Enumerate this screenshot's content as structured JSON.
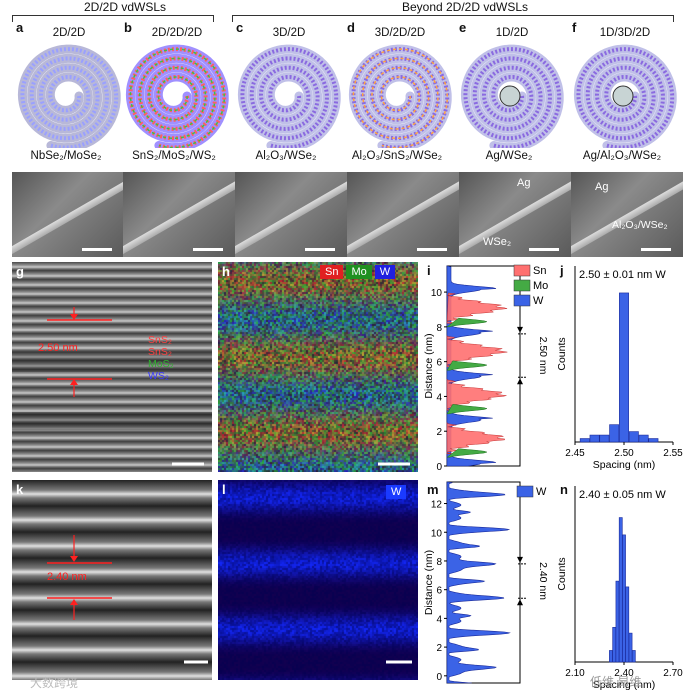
{
  "header": {
    "group1": "2D/2D vdWSLs",
    "group2": "Beyond 2D/2D vdWSLs"
  },
  "top_panels": [
    {
      "letter": "a",
      "title": "2D/2D",
      "material": "NbSe₂/MoSe₂"
    },
    {
      "letter": "b",
      "title": "2D/2D/2D",
      "material": "SnS₂/MoS₂/WS₂"
    },
    {
      "letter": "c",
      "title": "3D/2D",
      "material": "Al₂O₃/WSe₂"
    },
    {
      "letter": "d",
      "title": "3D/2D/2D",
      "material": "Al₂O₃/SnS₂/WSe₂"
    },
    {
      "letter": "e",
      "title": "1D/2D",
      "material": "Ag/WSe₂"
    },
    {
      "letter": "f",
      "title": "1D/3D/2D",
      "material": "Ag/Al₂O₃/WSe₂"
    }
  ],
  "sem_labels": {
    "e_top": "Ag",
    "e_bottom": "WSe₂",
    "f_top": "Ag",
    "f_bottom": "Al₂O₃/WSe₂"
  },
  "panel_g": {
    "letter": "g",
    "spacing": "2.50 nm",
    "layers": [
      "SnS₂",
      "SnS₂",
      "MoS₂",
      "WS₂"
    ],
    "layer_colors": [
      "#ff4040",
      "#ff4040",
      "#30b030",
      "#3a3aff"
    ]
  },
  "panel_h": {
    "letter": "h",
    "legend": [
      "Sn",
      "Mo",
      "W"
    ]
  },
  "panel_k": {
    "letter": "k",
    "spacing": "2.40 nm"
  },
  "panel_l": {
    "letter": "l",
    "legend": "W"
  },
  "colors": {
    "sn": "#ff5a5a",
    "mo": "#3aaa3a",
    "w": "#3a5aff",
    "w_fill": "#3b63e6"
  },
  "chart_data": [
    {
      "type": "area",
      "panel": "i",
      "ylabel": "Distance (nm)",
      "ylim": [
        0,
        11.5
      ],
      "yticks": [
        0,
        2,
        4,
        6,
        8,
        10
      ],
      "legend": [
        "Sn",
        "Mo",
        "W"
      ],
      "annotation": "2.50 nm"
    },
    {
      "type": "bar",
      "panel": "j",
      "title": "2.50 ± 0.01 nm W",
      "xlabel": "Spacing (nm)",
      "ylabel": "Counts",
      "xlim": [
        2.45,
        2.55
      ],
      "xticks": [
        "2.45",
        "2.50",
        "2.55"
      ],
      "categories": [
        2.46,
        2.47,
        2.48,
        2.49,
        2.5,
        2.51,
        2.52,
        2.53
      ],
      "values": [
        1,
        2,
        2,
        5,
        43,
        3,
        2,
        1
      ]
    },
    {
      "type": "area",
      "panel": "m",
      "ylabel": "Distance (nm)",
      "ylim": [
        -0.5,
        13.5
      ],
      "yticks": [
        0,
        2,
        4,
        6,
        8,
        10,
        12
      ],
      "legend": [
        "W"
      ],
      "annotation": "2.40 nm"
    },
    {
      "type": "bar",
      "panel": "n",
      "title": "2.40 ± 0.05 nm W",
      "xlabel": "Spacing (nm)",
      "ylabel": "Counts",
      "xlim": [
        2.1,
        2.7
      ],
      "xticks": [
        "2.10",
        "2.40",
        "2.70"
      ],
      "categories": [
        2.32,
        2.34,
        2.36,
        2.38,
        2.4,
        2.42,
        2.44,
        2.46
      ],
      "values": [
        2,
        6,
        14,
        25,
        22,
        13,
        5,
        2
      ]
    }
  ],
  "watermark": {
    "left": "大数跨境",
    "right": "低维 昂维"
  }
}
